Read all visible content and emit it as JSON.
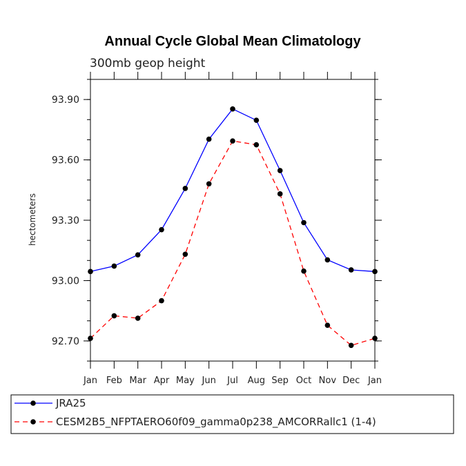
{
  "chart_data": {
    "type": "line",
    "title": "Annual Cycle Global Mean Climatology",
    "subtitle": "300mb geop height",
    "xlabel": "",
    "ylabel": "hectometers",
    "categories": [
      "Jan",
      "Feb",
      "Mar",
      "Apr",
      "May",
      "Jun",
      "Jul",
      "Aug",
      "Sep",
      "Oct",
      "Nov",
      "Dec",
      "Jan"
    ],
    "yticks": [
      "92.70",
      "93.00",
      "93.30",
      "93.60",
      "93.90"
    ],
    "ylim": [
      92.6,
      94.0
    ],
    "grid": false,
    "legend_position": "bottom",
    "series": [
      {
        "name": "JRA25",
        "color": "#0000ff",
        "line_style": "solid",
        "values": [
          93.045,
          93.072,
          93.128,
          93.253,
          93.458,
          93.703,
          93.853,
          93.797,
          93.547,
          93.288,
          93.103,
          93.053,
          93.045
        ]
      },
      {
        "name": "CESM2B5_NFPTAERO60f09_gamma0p238_AMCORRallc1 (1-4)",
        "color": "#ff0000",
        "line_style": "dashed",
        "values": [
          92.713,
          92.825,
          92.813,
          92.9,
          93.131,
          93.481,
          93.694,
          93.675,
          93.431,
          93.047,
          92.778,
          92.678,
          92.713
        ]
      }
    ]
  }
}
